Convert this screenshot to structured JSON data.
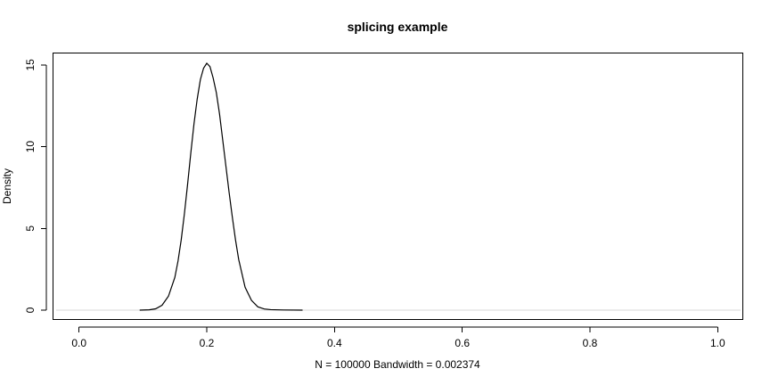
{
  "chart_data": {
    "type": "line",
    "title": "splicing example",
    "xlabel": "N = 100000   Bandwidth = 0.002374",
    "ylabel": "Density",
    "xlim": [
      -0.04,
      1.04
    ],
    "ylim": [
      -0.6,
      15.7
    ],
    "x_ticks": [
      "0.0",
      "0.2",
      "0.4",
      "0.6",
      "0.8",
      "1.0"
    ],
    "y_ticks": [
      "0",
      "5",
      "10",
      "15"
    ],
    "x_tick_values": [
      0.0,
      0.2,
      0.4,
      0.6,
      0.8,
      1.0
    ],
    "y_tick_values": [
      0,
      5,
      10,
      15
    ],
    "baseline": 0,
    "colors": {
      "line": "#000000",
      "baseline": "#d9d9d9",
      "axis": "#000000"
    },
    "series": [
      {
        "x": [
          0.095,
          0.11,
          0.12,
          0.13,
          0.14,
          0.15,
          0.155,
          0.16,
          0.165,
          0.17,
          0.175,
          0.18,
          0.185,
          0.19,
          0.195,
          0.2,
          0.205,
          0.21,
          0.215,
          0.22,
          0.225,
          0.23,
          0.235,
          0.24,
          0.245,
          0.25,
          0.26,
          0.27,
          0.28,
          0.29,
          0.3,
          0.32,
          0.35
        ],
        "y": [
          0.0,
          0.02,
          0.08,
          0.3,
          0.85,
          2.0,
          3.0,
          4.3,
          5.9,
          7.7,
          9.6,
          11.4,
          12.9,
          14.1,
          14.8,
          15.1,
          14.9,
          14.2,
          13.3,
          12.0,
          10.4,
          8.8,
          7.2,
          5.7,
          4.3,
          3.1,
          1.4,
          0.6,
          0.2,
          0.07,
          0.03,
          0.01,
          0.0
        ]
      }
    ]
  }
}
